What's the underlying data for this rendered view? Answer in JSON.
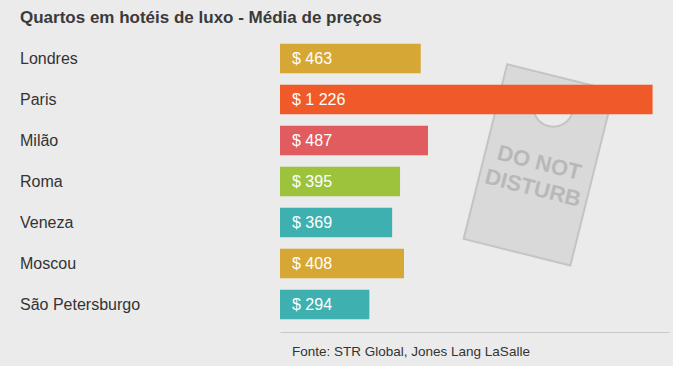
{
  "chart_data": {
    "type": "bar",
    "orientation": "horizontal",
    "title": "Quartos em hotéis de luxo - Média de preços",
    "source": "Fonte: STR Global, Jones Lang LaSalle",
    "annotations": [
      "DO NOT DISTURB"
    ],
    "categories": [
      "Londres",
      "Paris",
      "Milão",
      "Roma",
      "Veneza",
      "Moscou",
      "São Petersburgo"
    ],
    "values": [
      463,
      1226,
      487,
      395,
      369,
      408,
      294
    ],
    "value_labels": [
      "$ 463",
      "$ 1 226",
      "$ 487",
      "$ 395",
      "$ 369",
      "$ 408",
      "$ 294"
    ],
    "colors": [
      "#d6a734",
      "#f05a28",
      "#e05c5e",
      "#9dc33d",
      "#3fb0b0",
      "#d6a734",
      "#3fb0b0"
    ],
    "xlim": [
      0,
      1280
    ],
    "data_labels": true,
    "tick_labels": "y",
    "grid": false
  }
}
